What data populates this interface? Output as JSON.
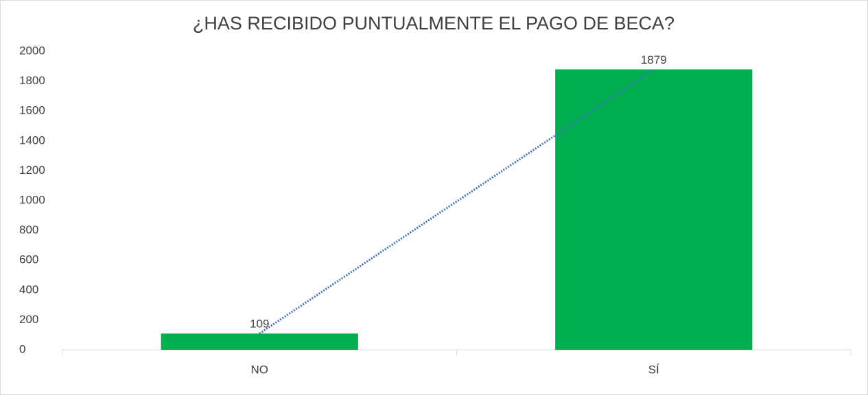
{
  "chart_data": {
    "type": "bar",
    "title": "¿HAS RECIBIDO PUNTUALMENTE EL PAGO DE BECA?",
    "categories": [
      "NO",
      "SÍ"
    ],
    "values": [
      109,
      1879
    ],
    "color": "#00b050",
    "ylim": [
      0,
      2000
    ],
    "yticks": [
      0,
      200,
      400,
      600,
      800,
      1000,
      1200,
      1400,
      1600,
      1800,
      2000
    ],
    "grid": false,
    "trendline": "linear",
    "trendline_color": "#4472c4"
  }
}
